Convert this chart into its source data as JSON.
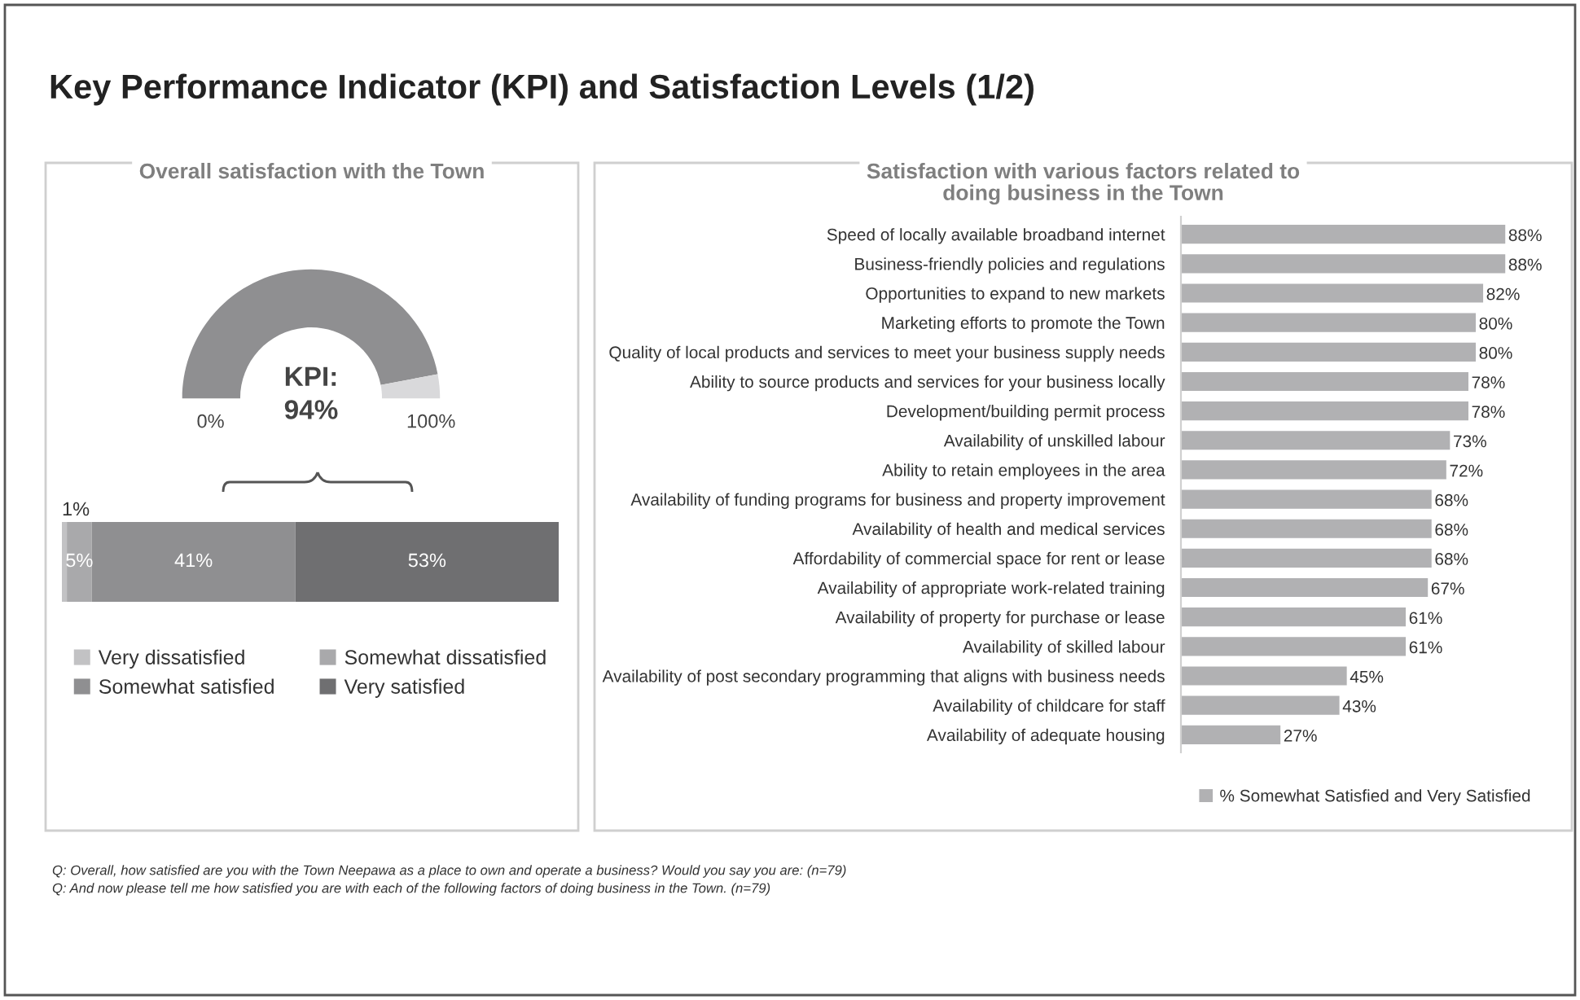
{
  "chart_data": [
    {
      "type": "donut",
      "title": "Key Performance Indicator (KPI) and Satisfaction Levels (1/2)",
      "subtitle": "Overall satisfaction with the Town",
      "categories": [
        null,
        null
      ],
      "values": [
        94,
        6
      ],
      "colors": [
        "#8f8f91",
        "#d9d9db"
      ],
      "annotations": [
        "0%",
        "100%",
        "KPI:\n94%"
      ]
    },
    {
      "type": "bar",
      "orientation": "horizontal",
      "stacked": true,
      "categories": [
        null
      ],
      "legend": "bottom",
      "series": [
        {
          "name": "Very dissatisfied",
          "color": "#c2c2c4",
          "values": [
            1
          ],
          "value_labels": [
            "1%"
          ]
        },
        {
          "name": "Somewhat dissatisfied",
          "color": "#a9a9ab",
          "values": [
            5
          ],
          "value_labels": [
            "5%"
          ]
        },
        {
          "name": "Somewhat satisfied",
          "color": "#8f8f91",
          "values": [
            41
          ],
          "value_labels": [
            "41%"
          ]
        },
        {
          "name": "Very satisfied",
          "color": "#6f6f71",
          "values": [
            53
          ],
          "value_labels": [
            "53%"
          ]
        }
      ]
    },
    {
      "type": "bar",
      "orientation": "horizontal",
      "title": "Satisfaction with various factors related to\ndoing business in the Town",
      "legend": "bottom",
      "categories": [
        "Speed of locally available broadband internet",
        "Business-friendly policies and regulations",
        "Opportunities to expand to new markets",
        "Marketing efforts to promote the Town",
        "Quality of local products and services to meet your business supply needs",
        "Ability to source products and services for your business locally",
        "Development/building permit process",
        "Availability of unskilled labour",
        "Ability to retain employees in the area",
        "Availability of funding programs for business and property improvement",
        "Availability of health and medical services",
        "Affordability of commercial space for rent or lease",
        "Availability of appropriate work-related training",
        "Availability of property for purchase or lease",
        "Availability of skilled labour",
        "Availability of post secondary programming that aligns with business needs",
        "Availability of childcare for staff",
        "Availability of adequate housing"
      ],
      "series": [
        {
          "name": "% Somewhat Satisfied and Very Satisfied",
          "color": "#b1b1b3",
          "values": [
            88,
            88,
            82,
            80,
            80,
            78,
            78,
            73,
            72,
            68,
            68,
            68,
            67,
            61,
            61,
            45,
            43,
            27
          ],
          "value_labels": [
            "88%",
            "88%",
            "82%",
            "80%",
            "80%",
            "78%",
            "78%",
            "73%",
            "72%",
            "68%",
            "68%",
            "68%",
            "67%",
            "61%",
            "61%",
            "45%",
            "43%",
            "27%"
          ]
        }
      ],
      "annotations": [
        "Q: Overall, how satisfied are you with the Town Neepawa as a place to own and operate a business? Would you say you are: (n=79)",
        "Q: And now please tell me how satisfied you are with each of the following factors of doing business in the Town. (n=79)"
      ]
    }
  ]
}
